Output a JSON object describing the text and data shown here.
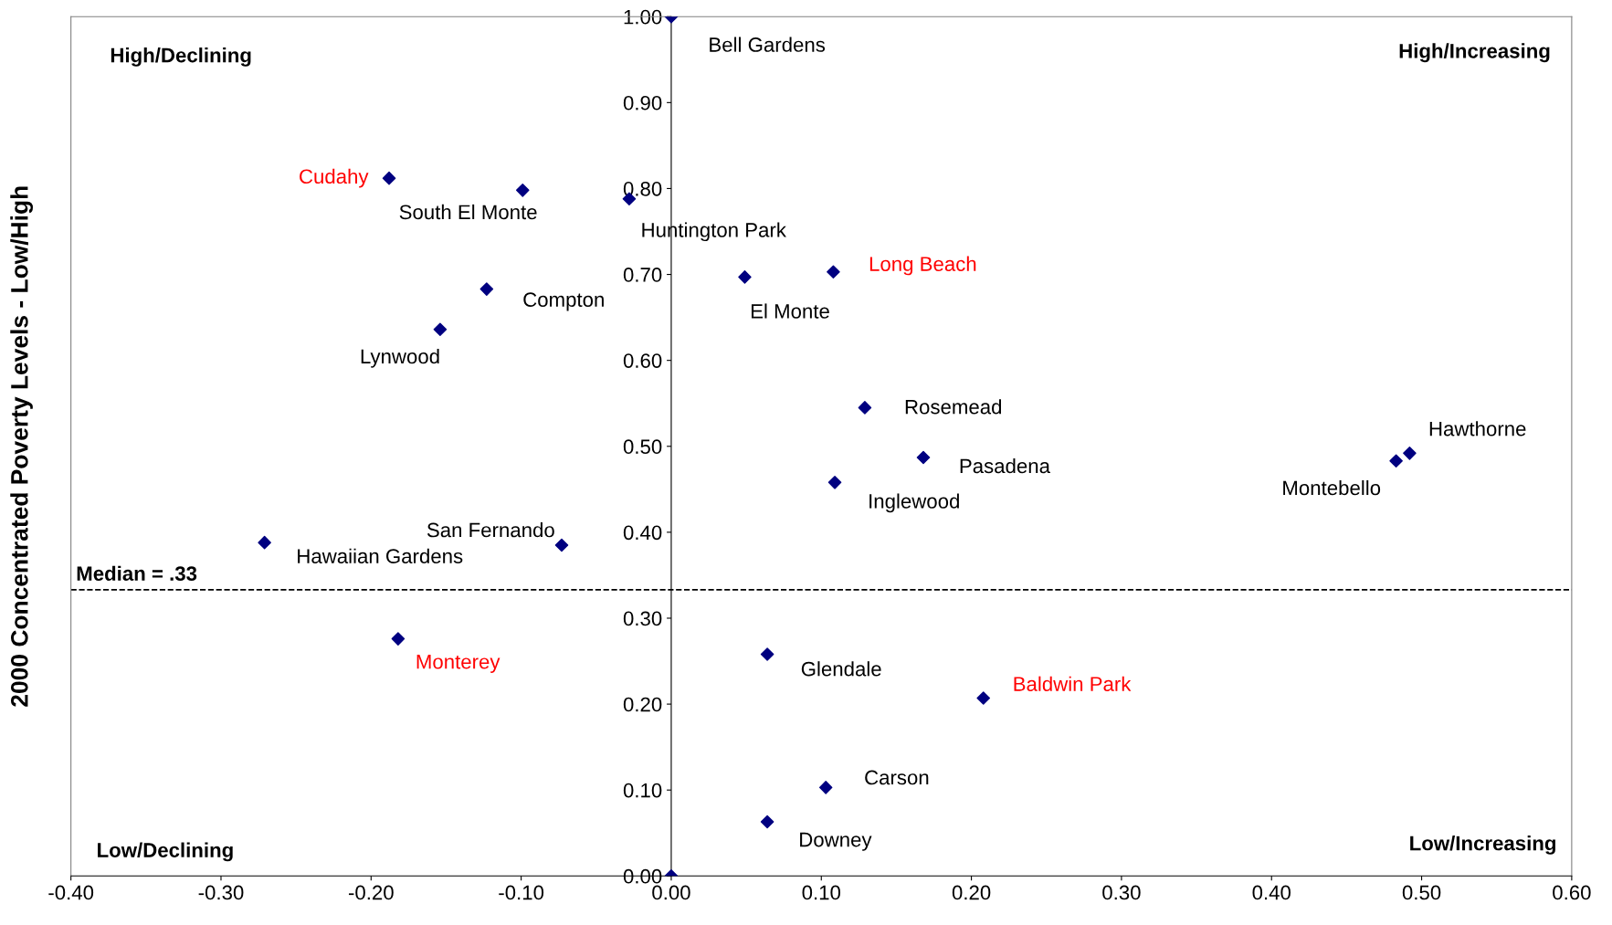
{
  "chart_data": {
    "type": "scatter",
    "ylabel": "2000 Concentrated Poverty Levels - Low/High",
    "marker": "diamond",
    "grid": false,
    "legend": false,
    "xlim": [
      -0.4,
      0.6
    ],
    "ylim": [
      0,
      1
    ],
    "xticks": [
      {
        "value": -0.4,
        "label": "-0.40"
      },
      {
        "value": -0.3,
        "label": "-0.30"
      },
      {
        "value": -0.2,
        "label": "-0.20"
      },
      {
        "value": -0.1,
        "label": "-0.10"
      },
      {
        "value": 0,
        "label": "0.00"
      },
      {
        "value": 0.1,
        "label": "0.10"
      },
      {
        "value": 0.2,
        "label": "0.20"
      },
      {
        "value": 0.3,
        "label": "0.30"
      },
      {
        "value": 0.4,
        "label": "0.40"
      },
      {
        "value": 0.5,
        "label": "0.50"
      },
      {
        "value": 0.6,
        "label": "0.60"
      }
    ],
    "yticks": [
      {
        "value": 0,
        "label": "0.00"
      },
      {
        "value": 0.1,
        "label": "0.10"
      },
      {
        "value": 0.2,
        "label": "0.20"
      },
      {
        "value": 0.3,
        "label": "0.30"
      },
      {
        "value": 0.4,
        "label": "0.40"
      },
      {
        "value": 0.5,
        "label": "0.50"
      },
      {
        "value": 0.6,
        "label": "0.60"
      },
      {
        "value": 0.7,
        "label": "0.70"
      },
      {
        "value": 0.8,
        "label": "0.80"
      },
      {
        "value": 0.9,
        "label": "0.90"
      },
      {
        "value": 1,
        "label": "1.00"
      }
    ],
    "series": [
      {
        "color": "#000080",
        "x": [
          0.0,
          0.0,
          -0.099,
          -0.028,
          -0.123,
          -0.154,
          0.049,
          0.129,
          0.168,
          0.109,
          0.483,
          0.492,
          -0.271,
          -0.073,
          0.064,
          0.103,
          0.064
        ],
        "values": [
          1.0,
          0.0,
          0.798,
          0.788,
          0.683,
          0.636,
          0.697,
          0.545,
          0.487,
          0.458,
          0.483,
          0.492,
          0.388,
          0.385,
          0.258,
          0.103,
          0.063
        ],
        "value_labels": [
          "Bell Gardens",
          null,
          "South El Monte",
          "Huntington Park",
          "Compton",
          "Lynwood",
          "El Monte",
          "Rosemead",
          "Pasadena",
          "Inglewood",
          "Montebello",
          "Hawthorne",
          "Hawaiian Gardens",
          "San Fernando",
          "Glendale",
          "Carson",
          "Downey"
        ]
      },
      {
        "color": "#000080",
        "x": [
          -0.188,
          0.108,
          -0.182,
          0.208
        ],
        "values": [
          0.812,
          0.703,
          0.276,
          0.207
        ],
        "value_labels": [
          "Cudahy",
          "Long Beach",
          "Monterey",
          "Baldwin Park"
        ]
      }
    ],
    "ref_lines": [
      {
        "axis": "y",
        "value": 0.333,
        "label": "Median = .33",
        "color": "#000000",
        "line_style": "dashed"
      }
    ],
    "annotations": [
      "High/Declining",
      "High/Increasing",
      "Low/Declining",
      "Low/Increasing"
    ]
  }
}
